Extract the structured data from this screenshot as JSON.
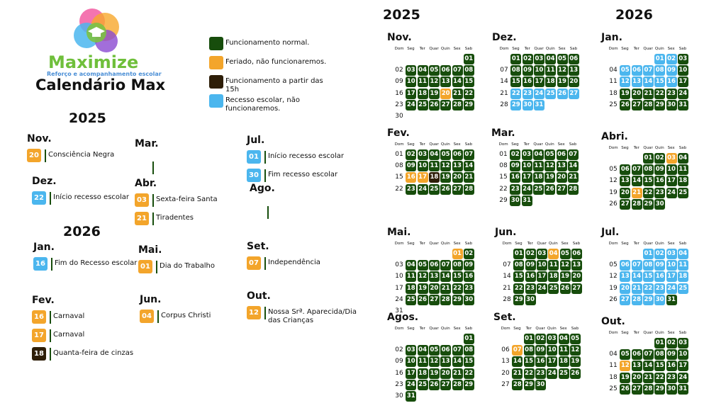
{
  "brand": {
    "name": "Maximize",
    "tagline": "Reforço e acompanhamento escolar",
    "title": "Calendário Max"
  },
  "legend": [
    {
      "status": "normal",
      "color": "#174d0c",
      "label": "Funcionamento normal."
    },
    {
      "status": "holiday",
      "color": "#f3a52b",
      "label": "Feriado, não funcionaremos."
    },
    {
      "status": "late",
      "color": "#2e1e08",
      "label": "Funcionamento a partir das 15h"
    },
    {
      "status": "recess",
      "color": "#4bb6ee",
      "label": "Recesso escolar, não funcionaremos."
    }
  ],
  "events": [
    {
      "year": "2025",
      "months": [
        {
          "name": "Nov.",
          "items": [
            {
              "day": "20",
              "text": "Consciência Negra",
              "status": "holiday"
            }
          ]
        },
        {
          "name": "Dez.",
          "items": [
            {
              "day": "22",
              "text": "Início recesso escolar",
              "status": "recess"
            }
          ]
        }
      ]
    },
    {
      "year": "2026",
      "months": [
        {
          "name": "Jan.",
          "items": [
            {
              "day": "16",
              "text": "Fim do Recesso escolar",
              "status": "recess"
            }
          ]
        },
        {
          "name": "Fev.",
          "items": [
            {
              "day": "16",
              "text": "Carnaval",
              "status": "holiday"
            },
            {
              "day": "17",
              "text": "Carnaval",
              "status": "holiday"
            },
            {
              "day": "18",
              "text": "Quanta-feira de cinzas",
              "status": "late"
            }
          ]
        },
        {
          "name": "Mar.",
          "items": []
        },
        {
          "name": "Abr.",
          "items": [
            {
              "day": "03",
              "text": "Sexta-feira Santa",
              "status": "holiday"
            },
            {
              "day": "21",
              "text": "Tiradentes",
              "status": "holiday"
            }
          ]
        },
        {
          "name": "Mai.",
          "items": [
            {
              "day": "01",
              "text": "Dia do Trabalho",
              "status": "holiday"
            }
          ]
        },
        {
          "name": "Jun.",
          "items": [
            {
              "day": "04",
              "text": "Corpus Christi",
              "status": "holiday"
            }
          ]
        },
        {
          "name": "Jul.",
          "items": [
            {
              "day": "01",
              "text": "Início recesso escolar",
              "status": "recess"
            },
            {
              "day": "30",
              "text": "Fim recesso escolar",
              "status": "recess"
            }
          ]
        },
        {
          "name": "Ago.",
          "items": []
        },
        {
          "name": "Set.",
          "items": [
            {
              "day": "07",
              "text": "Independência",
              "status": "holiday"
            }
          ]
        },
        {
          "name": "Out.",
          "items": [
            {
              "day": "12",
              "text": "Nossa Srª. Aparecida/Dia das Crianças",
              "status": "holiday"
            }
          ]
        }
      ]
    }
  ],
  "calendar": {
    "years": [
      "2025",
      "2026"
    ],
    "weekdays": [
      "Dom",
      "Seg",
      "Ter",
      "Quar",
      "Quin",
      "Sex",
      "Sab"
    ],
    "months": [
      {
        "name": "Nov.",
        "weeks": [
          [
            null,
            null,
            null,
            null,
            null,
            null,
            "01"
          ],
          [
            "02",
            "03",
            "04",
            "05",
            "06",
            "07",
            "08"
          ],
          [
            "09",
            "10",
            "11",
            "12",
            "13",
            "14",
            "15"
          ],
          [
            "16",
            "17",
            "18",
            "19",
            "20",
            "21",
            "22"
          ],
          [
            "23",
            "24",
            "25",
            "26",
            "27",
            "28",
            "29"
          ],
          [
            "30"
          ]
        ],
        "holiday": [
          "20"
        ]
      },
      {
        "name": "Dez.",
        "weeks": [
          [
            null,
            "01",
            "02",
            "03",
            "04",
            "05",
            "06"
          ],
          [
            "07",
            "08",
            "09",
            "10",
            "11",
            "12",
            "13"
          ],
          [
            "14",
            "15",
            "16",
            "17",
            "18",
            "19",
            "20"
          ],
          [
            "21",
            "22",
            "23",
            "24",
            "25",
            "26",
            "27"
          ],
          [
            "28",
            "29",
            "30",
            "31"
          ]
        ],
        "recess": [
          "22",
          "23",
          "24",
          "25",
          "26",
          "27",
          "29",
          "30",
          "31"
        ]
      },
      {
        "name": "Jan.",
        "weeks": [
          [
            null,
            null,
            null,
            null,
            "01",
            "02",
            "03"
          ],
          [
            "04",
            "05",
            "06",
            "07",
            "08",
            "09",
            "10"
          ],
          [
            "11",
            "12",
            "13",
            "14",
            "15",
            "16",
            "17"
          ],
          [
            "18",
            "19",
            "20",
            "21",
            "22",
            "23",
            "24"
          ],
          [
            "25",
            "26",
            "27",
            "28",
            "29",
            "30",
            "31"
          ]
        ],
        "recess": [
          "01",
          "02",
          "05",
          "06",
          "07",
          "08",
          "09",
          "12",
          "13",
          "14",
          "15",
          "16"
        ]
      },
      {
        "name": "Fev.",
        "weeks": [
          [
            "01",
            "02",
            "03",
            "04",
            "05",
            "06",
            "07"
          ],
          [
            "08",
            "09",
            "10",
            "11",
            "12",
            "13",
            "14"
          ],
          [
            "15",
            "16",
            "17",
            "18",
            "19",
            "20",
            "21"
          ],
          [
            "22",
            "23",
            "24",
            "25",
            "26",
            "27",
            "28"
          ]
        ],
        "holiday": [
          "16",
          "17"
        ],
        "late": [
          "18"
        ]
      },
      {
        "name": "Mar.",
        "weeks": [
          [
            "01",
            "02",
            "03",
            "04",
            "05",
            "06",
            "07"
          ],
          [
            "08",
            "09",
            "10",
            "11",
            "12",
            "13",
            "14"
          ],
          [
            "15",
            "16",
            "17",
            "18",
            "19",
            "20",
            "21"
          ],
          [
            "22",
            "23",
            "24",
            "25",
            "26",
            "27",
            "28"
          ],
          [
            "29",
            "30",
            "31"
          ]
        ]
      },
      {
        "name": "Abri.",
        "weeks": [
          [
            null,
            null,
            null,
            "01",
            "02",
            "03",
            "04"
          ],
          [
            "05",
            "06",
            "07",
            "08",
            "09",
            "10",
            "11"
          ],
          [
            "12",
            "13",
            "14",
            "15",
            "16",
            "17",
            "18"
          ],
          [
            "19",
            "20",
            "21",
            "22",
            "23",
            "24",
            "25"
          ],
          [
            "26",
            "27",
            "28",
            "29",
            "30"
          ]
        ],
        "holiday": [
          "03",
          "21"
        ]
      },
      {
        "name": "Mai.",
        "weeks": [
          [
            null,
            null,
            null,
            null,
            null,
            "01",
            "02"
          ],
          [
            "03",
            "04",
            "05",
            "06",
            "07",
            "08",
            "09"
          ],
          [
            "10",
            "11",
            "12",
            "13",
            "14",
            "15",
            "16"
          ],
          [
            "17",
            "18",
            "19",
            "20",
            "21",
            "22",
            "23"
          ],
          [
            "24",
            "25",
            "26",
            "27",
            "28",
            "29",
            "30"
          ],
          [
            "31"
          ]
        ],
        "holiday": [
          "01"
        ]
      },
      {
        "name": "Jun.",
        "weeks": [
          [
            null,
            "01",
            "02",
            "03",
            "04",
            "05",
            "06"
          ],
          [
            "07",
            "08",
            "09",
            "10",
            "11",
            "12",
            "13"
          ],
          [
            "14",
            "15",
            "16",
            "17",
            "18",
            "19",
            "20"
          ],
          [
            "21",
            "22",
            "23",
            "24",
            "25",
            "26",
            "27"
          ],
          [
            "28",
            "29",
            "30"
          ]
        ],
        "holiday": [
          "04"
        ]
      },
      {
        "name": "Jul.",
        "weeks": [
          [
            null,
            null,
            null,
            "01",
            "02",
            "03",
            "04"
          ],
          [
            "05",
            "06",
            "07",
            "08",
            "09",
            "10",
            "11"
          ],
          [
            "12",
            "13",
            "14",
            "15",
            "16",
            "17",
            "18"
          ],
          [
            "19",
            "20",
            "21",
            "22",
            "23",
            "24",
            "25"
          ],
          [
            "26",
            "27",
            "28",
            "29",
            "30",
            "31"
          ]
        ],
        "recess": [
          "01",
          "02",
          "03",
          "04",
          "06",
          "07",
          "08",
          "09",
          "10",
          "11",
          "13",
          "14",
          "15",
          "16",
          "17",
          "18",
          "20",
          "21",
          "22",
          "23",
          "24",
          "25",
          "27",
          "28",
          "29",
          "30"
        ]
      },
      {
        "name": "Agos.",
        "weeks": [
          [
            null,
            null,
            null,
            null,
            null,
            null,
            "01"
          ],
          [
            "02",
            "03",
            "04",
            "05",
            "06",
            "07",
            "08"
          ],
          [
            "09",
            "10",
            "11",
            "12",
            "13",
            "14",
            "15"
          ],
          [
            "16",
            "17",
            "18",
            "19",
            "20",
            "21",
            "22"
          ],
          [
            "23",
            "24",
            "25",
            "26",
            "27",
            "28",
            "29"
          ],
          [
            "30",
            "31"
          ]
        ]
      },
      {
        "name": "Set.",
        "weeks": [
          [
            null,
            null,
            "01",
            "02",
            "03",
            "04",
            "05"
          ],
          [
            "06",
            "07",
            "08",
            "09",
            "10",
            "11",
            "12"
          ],
          [
            "13",
            "14",
            "15",
            "16",
            "17",
            "18",
            "19"
          ],
          [
            "20",
            "21",
            "22",
            "23",
            "24",
            "25",
            "26"
          ],
          [
            "27",
            "28",
            "29",
            "30"
          ]
        ],
        "holiday": [
          "07"
        ]
      },
      {
        "name": "Out.",
        "weeks": [
          [
            null,
            null,
            null,
            null,
            "01",
            "02",
            "03"
          ],
          [
            "04",
            "05",
            "06",
            "07",
            "08",
            "09",
            "10"
          ],
          [
            "11",
            "12",
            "13",
            "14",
            "15",
            "16",
            "17"
          ],
          [
            "18",
            "19",
            "20",
            "21",
            "22",
            "23",
            "24"
          ],
          [
            "25",
            "26",
            "27",
            "28",
            "29",
            "30",
            "31"
          ]
        ],
        "holiday": [
          "12"
        ]
      }
    ]
  }
}
